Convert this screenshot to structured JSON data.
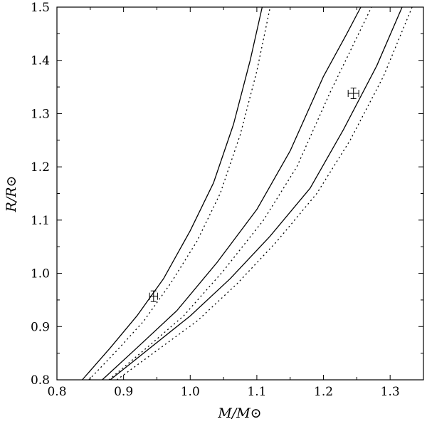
{
  "chart_data": {
    "type": "line",
    "xlabel": "M/M⊙",
    "ylabel": "R/R⊙",
    "xlim": [
      0.8,
      1.35
    ],
    "ylim": [
      0.8,
      1.5
    ],
    "xticks": [
      0.8,
      0.9,
      1.0,
      1.1,
      1.2,
      1.3
    ],
    "yticks": [
      0.8,
      0.9,
      1.0,
      1.1,
      1.2,
      1.3,
      1.4,
      1.5
    ],
    "xtick_labels": [
      "0.8",
      "0.9",
      "1.0",
      "1.1",
      "1.2",
      "1.3"
    ],
    "ytick_labels": [
      "0.8",
      "0.9",
      "1.0",
      "1.1",
      "1.2",
      "1.3",
      "1.4",
      "1.5"
    ],
    "grid": false,
    "series": [
      {
        "style": "solid",
        "x": [
          0.838,
          0.88,
          0.92,
          0.96,
          1.0,
          1.035,
          1.065,
          1.09,
          1.108
        ],
        "y": [
          0.8,
          0.86,
          0.92,
          0.99,
          1.08,
          1.17,
          1.28,
          1.4,
          1.5
        ]
      },
      {
        "style": "dotted",
        "x": [
          0.848,
          0.89,
          0.93,
          0.97,
          1.01,
          1.045,
          1.075,
          1.1,
          1.12
        ],
        "y": [
          0.8,
          0.855,
          0.91,
          0.98,
          1.06,
          1.15,
          1.26,
          1.38,
          1.5
        ]
      },
      {
        "style": "solid",
        "x": [
          0.868,
          0.92,
          0.98,
          1.04,
          1.1,
          1.15,
          1.2,
          1.235,
          1.256
        ],
        "y": [
          0.8,
          0.86,
          0.93,
          1.02,
          1.12,
          1.23,
          1.37,
          1.45,
          1.5
        ]
      },
      {
        "style": "dotted",
        "x": [
          0.878,
          0.93,
          0.99,
          1.05,
          1.11,
          1.16,
          1.21,
          1.245,
          1.272
        ],
        "y": [
          0.8,
          0.855,
          0.92,
          1.005,
          1.1,
          1.2,
          1.34,
          1.43,
          1.5
        ]
      },
      {
        "style": "solid",
        "x": [
          0.88,
          0.94,
          1.0,
          1.06,
          1.12,
          1.18,
          1.23,
          1.28,
          1.318
        ],
        "y": [
          0.8,
          0.86,
          0.92,
          0.99,
          1.07,
          1.16,
          1.27,
          1.39,
          1.5
        ]
      },
      {
        "style": "dotted",
        "x": [
          0.89,
          0.95,
          1.01,
          1.07,
          1.13,
          1.19,
          1.24,
          1.29,
          1.333
        ],
        "y": [
          0.8,
          0.855,
          0.91,
          0.98,
          1.06,
          1.15,
          1.25,
          1.37,
          1.5
        ]
      }
    ],
    "points": [
      {
        "x": 0.945,
        "y": 0.957,
        "xerr": 0.006,
        "yerr": 0.01
      },
      {
        "x": 1.245,
        "y": 1.338,
        "xerr": 0.008,
        "yerr": 0.01
      }
    ]
  }
}
